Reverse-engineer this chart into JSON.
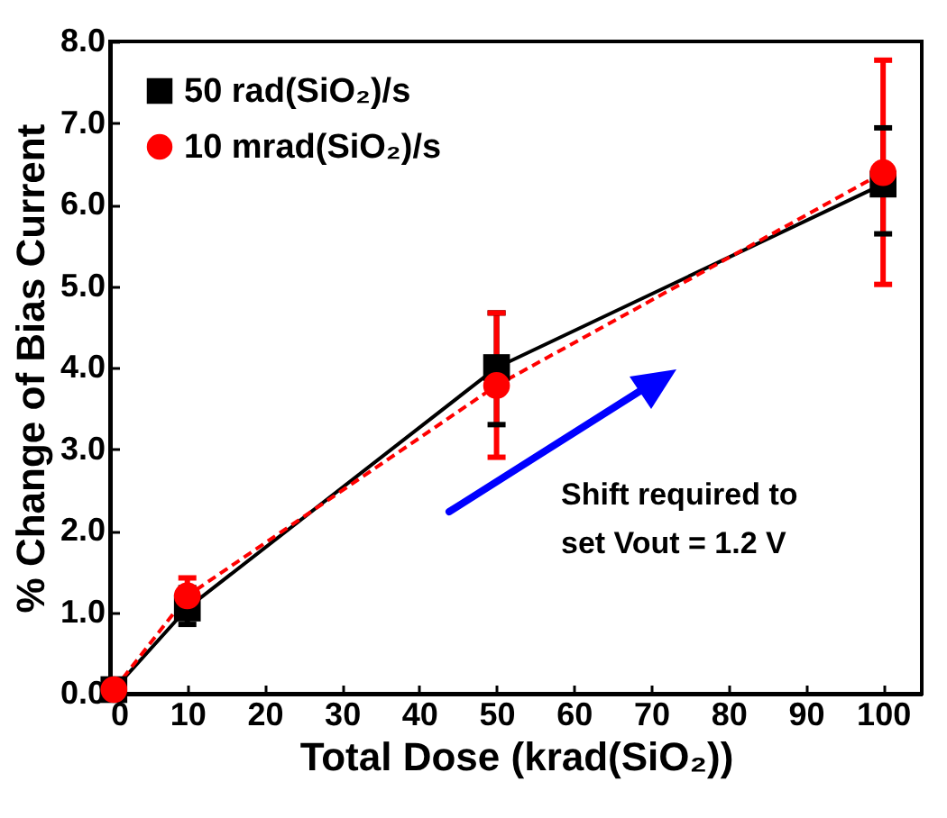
{
  "chart_data": {
    "type": "line",
    "xlabel": "Total Dose (krad(SiO₂))",
    "ylabel": "% Change of Bias Current",
    "x": [
      0.5,
      10,
      50,
      100
    ],
    "series": [
      {
        "name": "50 rad(SiO₂)/s",
        "color": "#000000",
        "marker": "square",
        "line_style": "solid",
        "values": [
          0.05,
          1.05,
          4.0,
          6.25
        ],
        "errors": [
          null,
          [
            0.85,
            1.3
          ],
          [
            3.3,
            4.67
          ],
          [
            5.64,
            6.94
          ]
        ]
      },
      {
        "name": "10 mrad(SiO₂)/s",
        "color": "#ff0000",
        "marker": "circle",
        "line_style": "dashed",
        "values": [
          0.05,
          1.2,
          3.78,
          6.39
        ],
        "errors": [
          null,
          [
            1.0,
            1.42
          ],
          [
            2.9,
            4.67
          ],
          [
            5.02,
            7.77
          ]
        ]
      }
    ],
    "xlim": [
      0,
      105
    ],
    "xticks": [
      0,
      10,
      20,
      30,
      40,
      50,
      60,
      70,
      80,
      90,
      100
    ],
    "ylim": [
      0,
      8
    ],
    "yticks": [
      {
        "value": 0,
        "label": "0.0"
      },
      {
        "value": 1,
        "label": "1.0"
      },
      {
        "value": 2,
        "label": "2.0"
      },
      {
        "value": 3,
        "label": "3.0"
      },
      {
        "value": 4,
        "label": "4.0"
      },
      {
        "value": 5,
        "label": "5.0"
      },
      {
        "value": 6,
        "label": "6.0"
      },
      {
        "value": 7,
        "label": "7.0"
      },
      {
        "value": 8,
        "label": "8.0"
      }
    ],
    "legend": "top left",
    "grid": false,
    "annotations": [
      "Shift required to\nset Vout = 1.2 V"
    ]
  }
}
